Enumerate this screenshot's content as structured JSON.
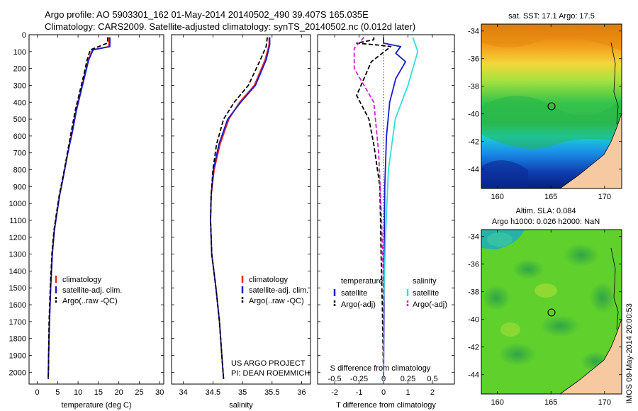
{
  "header": {
    "line1": "Argo profile: AO 5903301_162 01-May-2014 20140502_490 39.407S 165.035E",
    "line2": "Climatology: CARS2009. Satellite-adjusted climatology: synTS_20140502.nc (0.012d later)"
  },
  "colors": {
    "climatology": "#ee2222",
    "satellite": "#1a1acc",
    "argo": "#000000",
    "sal_satellite": "#33dddd",
    "sal_argo": "#cc22cc",
    "land": "#f6c9a0"
  },
  "chart_data": [
    {
      "type": "line",
      "name": "temperature",
      "xlabel": "temperature (deg C)",
      "ylabel": "",
      "xlim": [
        -2,
        31
      ],
      "ylim": [
        2070,
        0
      ],
      "xticks": [
        0,
        5,
        10,
        15,
        20,
        25,
        30
      ],
      "yticks": [
        0,
        100,
        200,
        300,
        400,
        500,
        600,
        700,
        800,
        900,
        1000,
        1100,
        1200,
        1300,
        1400,
        1500,
        1600,
        1700,
        1800,
        1900,
        2000
      ],
      "legend": {
        "position": "lower-right",
        "entries": [
          "climatology",
          "satellite-adj. clim.",
          "Argo(..raw -QC)"
        ]
      },
      "series": [
        {
          "name": "climatology",
          "style": "solid",
          "points": [
            [
              17.6,
              15
            ],
            [
              17.5,
              70
            ],
            [
              13.5,
              90
            ],
            [
              12.5,
              150
            ],
            [
              11.5,
              250
            ],
            [
              10.5,
              350
            ],
            [
              9.5,
              450
            ],
            [
              8.5,
              580
            ],
            [
              7.5,
              700
            ],
            [
              6.5,
              830
            ],
            [
              5.5,
              950
            ],
            [
              4.8,
              1060
            ],
            [
              4.2,
              1160
            ],
            [
              3.7,
              1300
            ],
            [
              3.3,
              1500
            ],
            [
              3.0,
              1700
            ],
            [
              2.8,
              1900
            ],
            [
              2.7,
              2040
            ]
          ]
        },
        {
          "name": "satellite-adj. clim.",
          "style": "solid",
          "points": [
            [
              17.8,
              15
            ],
            [
              17.8,
              70
            ],
            [
              13.7,
              90
            ],
            [
              12.6,
              150
            ],
            [
              11.6,
              250
            ],
            [
              10.6,
              350
            ],
            [
              9.6,
              450
            ],
            [
              8.6,
              580
            ],
            [
              7.5,
              700
            ],
            [
              6.5,
              830
            ],
            [
              5.5,
              950
            ],
            [
              4.8,
              1060
            ],
            [
              4.2,
              1160
            ],
            [
              3.7,
              1300
            ],
            [
              3.3,
              1500
            ],
            [
              3.0,
              1700
            ],
            [
              2.8,
              1900
            ],
            [
              2.7,
              2040
            ]
          ]
        },
        {
          "name": "Argo(..raw -QC)",
          "style": "dashed",
          "points": [
            [
              17.3,
              15
            ],
            [
              17.2,
              50
            ],
            [
              13.0,
              90
            ],
            [
              12.2,
              150
            ],
            [
              11.3,
              250
            ],
            [
              10.3,
              350
            ],
            [
              9.3,
              450
            ],
            [
              8.3,
              580
            ],
            [
              7.4,
              700
            ],
            [
              6.4,
              830
            ],
            [
              5.4,
              950
            ],
            [
              4.7,
              1060
            ],
            [
              4.1,
              1160
            ],
            [
              3.6,
              1300
            ],
            [
              3.2,
              1500
            ],
            [
              2.9,
              1700
            ],
            [
              2.8,
              1900
            ],
            [
              2.7,
              2040
            ]
          ]
        }
      ]
    },
    {
      "type": "line",
      "name": "salinity",
      "xlabel": "salinity",
      "xlim": [
        33.8,
        36.15
      ],
      "ylim": [
        2070,
        0
      ],
      "xticks": [
        34,
        34.5,
        35,
        35.5,
        36
      ],
      "xtick_labels": [
        "34",
        "34.5",
        "35",
        "35.5",
        "36"
      ],
      "legend": {
        "position": "lower-right",
        "entries": [
          "climatology",
          "satellite-adj. clim.",
          "Argo(..raw -QC)"
        ]
      },
      "annotation": [
        "US ARGO PROJECT",
        "PI: DEAN ROEMMICH"
      ],
      "series": [
        {
          "name": "climatology",
          "style": "solid",
          "points": [
            [
              35.45,
              15
            ],
            [
              35.45,
              60
            ],
            [
              35.38,
              150
            ],
            [
              35.2,
              300
            ],
            [
              34.95,
              400
            ],
            [
              34.77,
              500
            ],
            [
              34.62,
              650
            ],
            [
              34.52,
              800
            ],
            [
              34.47,
              950
            ],
            [
              34.46,
              1100
            ],
            [
              34.48,
              1300
            ],
            [
              34.55,
              1500
            ],
            [
              34.61,
              1700
            ],
            [
              34.65,
              1900
            ],
            [
              34.68,
              2040
            ]
          ]
        },
        {
          "name": "satellite-adj. clim.",
          "style": "solid",
          "points": [
            [
              35.46,
              15
            ],
            [
              35.46,
              60
            ],
            [
              35.4,
              150
            ],
            [
              35.22,
              300
            ],
            [
              34.97,
              400
            ],
            [
              34.75,
              500
            ],
            [
              34.6,
              650
            ],
            [
              34.51,
              800
            ],
            [
              34.47,
              950
            ],
            [
              34.46,
              1100
            ],
            [
              34.48,
              1300
            ],
            [
              34.55,
              1500
            ],
            [
              34.61,
              1700
            ],
            [
              34.65,
              1900
            ],
            [
              34.68,
              2040
            ]
          ]
        },
        {
          "name": "Argo(..raw -QC)",
          "style": "dashed",
          "points": [
            [
              35.42,
              15
            ],
            [
              35.4,
              70
            ],
            [
              35.3,
              150
            ],
            [
              35.1,
              300
            ],
            [
              34.86,
              400
            ],
            [
              34.68,
              500
            ],
            [
              34.56,
              650
            ],
            [
              34.5,
              800
            ],
            [
              34.47,
              950
            ],
            [
              34.46,
              1100
            ],
            [
              34.48,
              1300
            ],
            [
              34.55,
              1500
            ],
            [
              34.61,
              1700
            ],
            [
              34.65,
              1900
            ],
            [
              34.68,
              2040
            ]
          ]
        }
      ]
    },
    {
      "type": "line",
      "name": "difference from climatology",
      "xlabel": "T difference from climatology",
      "xlabel_top": "S difference from climatology",
      "xlim": [
        -2.7,
        2.9
      ],
      "ylim": [
        2070,
        0
      ],
      "xticks_t": [
        -2,
        -1,
        0,
        1,
        2
      ],
      "xticks_t_labels": [
        "-2",
        "-1",
        "0",
        "1",
        "2"
      ],
      "xticks_s_labels": [
        "-0.5",
        "-0.25",
        "0",
        "0.25",
        "0.5"
      ],
      "s_scale": 4,
      "legend": {
        "position": "lower-right",
        "temperature_title": "temperature",
        "salinity_title": "salinity",
        "entries_temperature": [
          "satellite",
          "Argo(-adj)"
        ],
        "entries_salinity": [
          "satellite",
          "Argo(-adj)"
        ]
      },
      "series": [
        {
          "name": "T satellite",
          "style": "solid",
          "points": [
            [
              0.0,
              15
            ],
            [
              0.0,
              50
            ],
            [
              0.7,
              70
            ],
            [
              0.5,
              110
            ],
            [
              0.9,
              160
            ],
            [
              0.5,
              260
            ],
            [
              0.25,
              400
            ],
            [
              0.12,
              600
            ],
            [
              0.05,
              900
            ],
            [
              0.03,
              1200
            ],
            [
              0.02,
              1600
            ],
            [
              0.0,
              2040
            ]
          ]
        },
        {
          "name": "T Argo(-adj)",
          "style": "dashed",
          "points": [
            [
              -0.4,
              15
            ],
            [
              -0.4,
              30
            ],
            [
              -1.1,
              50
            ],
            [
              -0.3,
              60
            ],
            [
              0.3,
              70
            ],
            [
              -0.5,
              160
            ],
            [
              -1.1,
              360
            ],
            [
              -0.6,
              500
            ],
            [
              -0.4,
              650
            ],
            [
              -0.15,
              900
            ],
            [
              -0.1,
              1300
            ],
            [
              -0.05,
              1600
            ],
            [
              0.0,
              2040
            ]
          ]
        },
        {
          "name": "S satellite",
          "style": "solid",
          "points": [
            [
              0.3,
              15
            ],
            [
              0.35,
              100
            ],
            [
              0.25,
              300
            ],
            [
              0.12,
              500
            ],
            [
              0.05,
              800
            ],
            [
              0.02,
              1200
            ],
            [
              0.0,
              1600
            ],
            [
              0.0,
              2040
            ]
          ]
        },
        {
          "name": "S Argo(-adj)",
          "style": "dashed",
          "points": [
            [
              -0.2,
              15
            ],
            [
              -0.3,
              80
            ],
            [
              -0.3,
              200
            ],
            [
              -0.1,
              400
            ],
            [
              -0.05,
              700
            ],
            [
              -0.02,
              1100
            ],
            [
              0.0,
              1500
            ],
            [
              0.0,
              2040
            ]
          ]
        }
      ]
    },
    {
      "type": "heatmap",
      "name": "sat map",
      "title": "sat. SST: 17.1  Argo: 17.5",
      "xlim": [
        158.5,
        171.6
      ],
      "ylim": [
        -45.4,
        -33.5
      ],
      "xticks": [
        160,
        165,
        170
      ],
      "yticks": [
        -34,
        -36,
        -38,
        -40,
        -42,
        -44
      ],
      "marker": {
        "lon": 165.035,
        "lat": -39.407
      }
    },
    {
      "type": "heatmap",
      "name": "sla map",
      "title": [
        "Altim. SLA: 0.084",
        "Argo h1000: 0.026 h2000: NaN"
      ],
      "xlim": [
        158.5,
        171.6
      ],
      "ylim": [
        -45.4,
        -33.5
      ],
      "xticks": [
        160,
        165,
        170
      ],
      "yticks": [
        -34,
        -36,
        -38,
        -40,
        -42,
        -44
      ],
      "marker": {
        "lon": 165.035,
        "lat": -39.407
      }
    }
  ],
  "side_label": "IMOS 09-May-2014 20:00:53"
}
